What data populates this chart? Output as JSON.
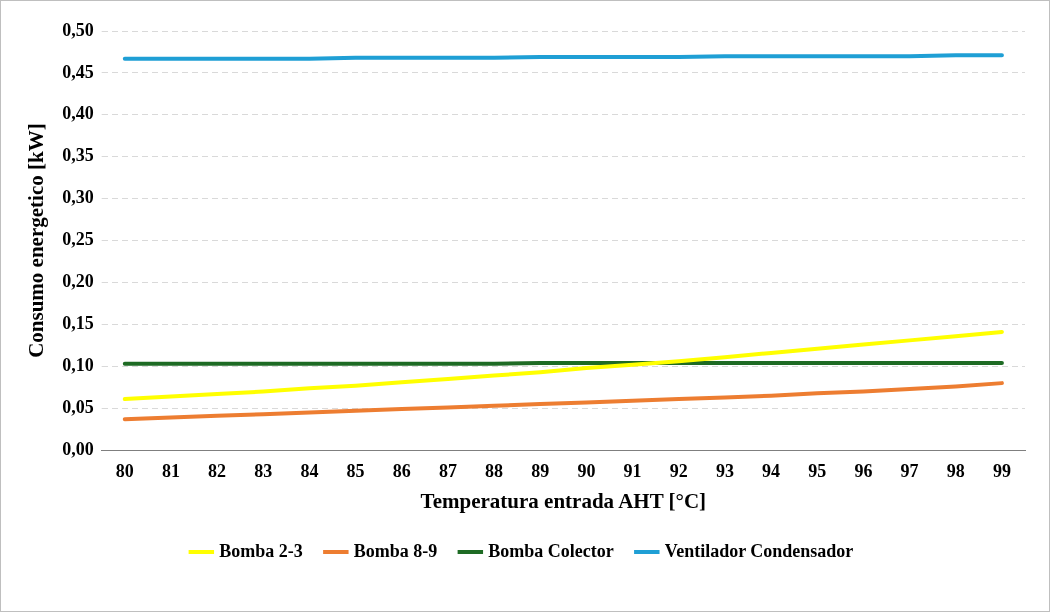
{
  "chart_data": {
    "type": "line",
    "xlabel": "Temperatura entrada AHT [°C]",
    "ylabel": "Consumo energetico [kW]",
    "categories": [
      "80",
      "81",
      "82",
      "83",
      "84",
      "85",
      "86",
      "87",
      "88",
      "89",
      "90",
      "91",
      "92",
      "93",
      "94",
      "95",
      "96",
      "97",
      "98",
      "99"
    ],
    "series": [
      {
        "name": "Bomba 2-3",
        "color": "#ffff00",
        "values": [
          0.061,
          0.064,
          0.067,
          0.07,
          0.074,
          0.077,
          0.081,
          0.085,
          0.089,
          0.093,
          0.098,
          0.102,
          0.106,
          0.111,
          0.116,
          0.121,
          0.126,
          0.131,
          0.136,
          0.141
        ]
      },
      {
        "name": "Bomba 8-9",
        "color": "#ed7d31",
        "values": [
          0.037,
          0.039,
          0.041,
          0.043,
          0.045,
          0.047,
          0.049,
          0.051,
          0.053,
          0.055,
          0.057,
          0.059,
          0.061,
          0.063,
          0.065,
          0.068,
          0.07,
          0.073,
          0.076,
          0.08
        ]
      },
      {
        "name": "Bomba Colector",
        "color": "#1e6b24",
        "values": [
          0.103,
          0.103,
          0.103,
          0.103,
          0.103,
          0.103,
          0.103,
          0.103,
          0.103,
          0.104,
          0.104,
          0.104,
          0.104,
          0.104,
          0.104,
          0.104,
          0.104,
          0.104,
          0.104,
          0.104
        ]
      },
      {
        "name": "Ventilador Condensador",
        "color": "#1f9fd5",
        "values": [
          0.467,
          0.467,
          0.467,
          0.467,
          0.467,
          0.468,
          0.468,
          0.468,
          0.468,
          0.469,
          0.469,
          0.469,
          0.469,
          0.47,
          0.47,
          0.47,
          0.47,
          0.47,
          0.471,
          0.471
        ]
      }
    ],
    "ylim": [
      0,
      0.5
    ],
    "yticks": [
      {
        "value": 0,
        "label": "0,00"
      },
      {
        "value": 0.05,
        "label": "0,05"
      },
      {
        "value": 0.1,
        "label": "0,10"
      },
      {
        "value": 0.15,
        "label": "0,15"
      },
      {
        "value": 0.2,
        "label": "0,20"
      },
      {
        "value": 0.25,
        "label": "0,25"
      },
      {
        "value": 0.3,
        "label": "0,30"
      },
      {
        "value": 0.35,
        "label": "0,35"
      },
      {
        "value": 0.4,
        "label": "0,40"
      },
      {
        "value": 0.45,
        "label": "0,45"
      },
      {
        "value": 0.5,
        "label": "0,50"
      }
    ],
    "grid": "y",
    "legend": "bottom",
    "marker": "none",
    "line_style": "solid"
  }
}
